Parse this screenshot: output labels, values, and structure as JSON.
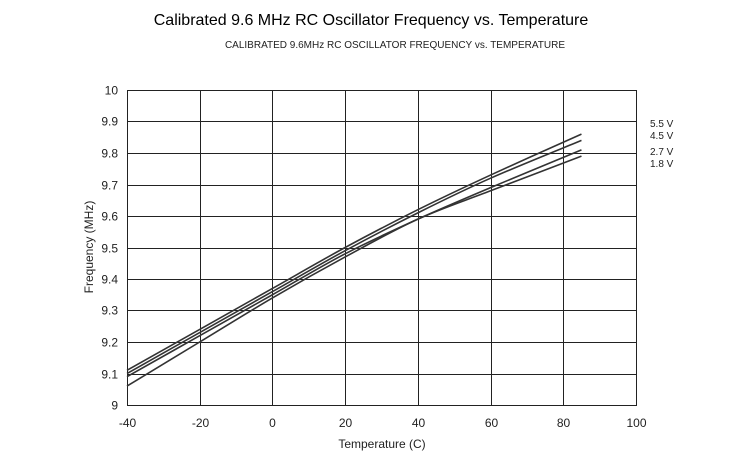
{
  "chart_data": {
    "type": "line",
    "title": "Calibrated 9.6 MHz RC Oscillator Frequency vs. Temperature",
    "subtitle": "CALIBRATED 9.6MHz RC OSCILLATOR FREQUENCY vs. TEMPERATURE",
    "xlabel": "Temperature (C)",
    "ylabel": "Frequency (MHz)",
    "xlim": [
      -40,
      100
    ],
    "ylim": [
      9,
      10
    ],
    "xticks": [
      -40,
      -20,
      0,
      20,
      40,
      60,
      80,
      100
    ],
    "yticks": [
      9,
      9.1,
      9.2,
      9.3,
      9.4,
      9.5,
      9.6,
      9.7,
      9.8,
      9.9,
      10
    ],
    "grid": true,
    "legend_placement": "right",
    "x": [
      -40,
      -20,
      0,
      20,
      40,
      60,
      85
    ],
    "series": [
      {
        "name": "5.5 V",
        "values": [
          9.11,
          9.24,
          9.37,
          9.5,
          9.62,
          9.73,
          9.86
        ]
      },
      {
        "name": "4.5 V",
        "values": [
          9.1,
          9.23,
          9.36,
          9.49,
          9.61,
          9.72,
          9.84
        ]
      },
      {
        "name": "2.7 V",
        "values": [
          9.09,
          9.22,
          9.35,
          9.48,
          9.59,
          9.69,
          9.81
        ]
      },
      {
        "name": "1.8 V",
        "values": [
          9.06,
          9.2,
          9.34,
          9.47,
          9.59,
          9.68,
          9.79
        ]
      }
    ]
  }
}
